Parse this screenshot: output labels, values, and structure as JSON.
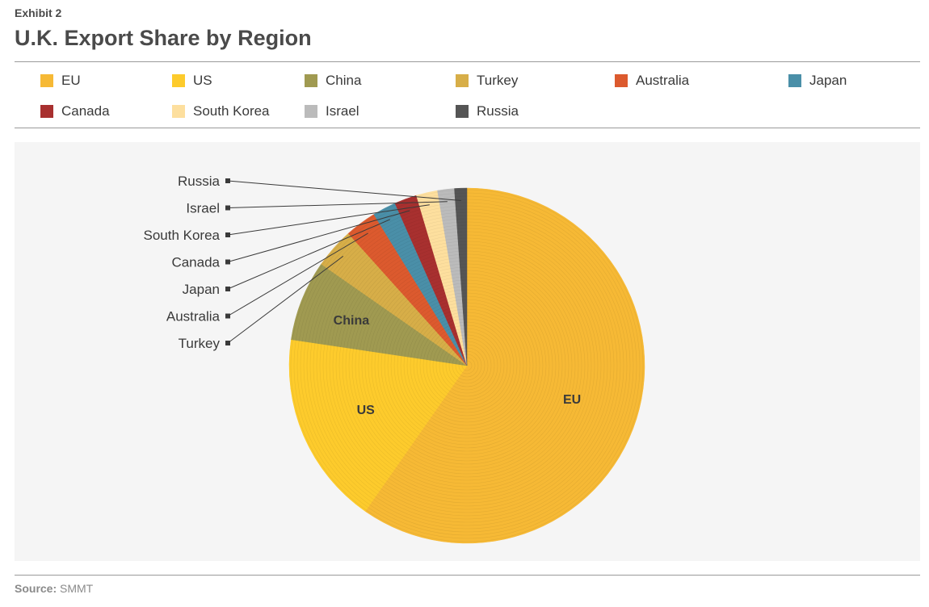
{
  "header": {
    "exhibit": "Exhibit 2",
    "title": "U.K. Export Share by Region"
  },
  "footer": {
    "source_label": "Source:",
    "source_value": "SMMT"
  },
  "chart_data": {
    "type": "pie",
    "title": "U.K. Export Share by Region",
    "legend_position": "top",
    "slices": [
      {
        "name": "EU",
        "value": 58.5,
        "color": "#F6B935",
        "label": "EU",
        "label_style": "inside"
      },
      {
        "name": "US",
        "value": 17.3,
        "color": "#FDCB2C",
        "label": "US",
        "label_style": "inside"
      },
      {
        "name": "China",
        "value": 7.2,
        "color": "#A09A51",
        "label": "China",
        "label_style": "inside"
      },
      {
        "name": "Turkey",
        "value": 3.6,
        "color": "#D7AE48",
        "label": "Turkey",
        "label_style": "callout"
      },
      {
        "name": "Australia",
        "value": 2.8,
        "color": "#DC5A2E",
        "label": "Australia",
        "label_style": "callout"
      },
      {
        "name": "Japan",
        "value": 2.1,
        "color": "#4A8FA8",
        "label": "Japan",
        "label_style": "callout"
      },
      {
        "name": "Canada",
        "value": 2.0,
        "color": "#A8302F",
        "label": "Canada",
        "label_style": "callout"
      },
      {
        "name": "South Korea",
        "value": 1.9,
        "color": "#FDDF9E",
        "label": "South Korea",
        "label_style": "callout"
      },
      {
        "name": "Israel",
        "value": 1.5,
        "color": "#BBBBBB",
        "label": "Israel",
        "label_style": "callout"
      },
      {
        "name": "Russia",
        "value": 1.1,
        "color": "#555555",
        "label": "Russia",
        "label_style": "callout"
      }
    ],
    "legend": {
      "rows": [
        [
          "EU",
          "US",
          "China",
          "Turkey",
          "Australia",
          "Japan"
        ],
        [
          "Canada",
          "South Korea",
          "Israel",
          "Russia"
        ]
      ]
    }
  }
}
